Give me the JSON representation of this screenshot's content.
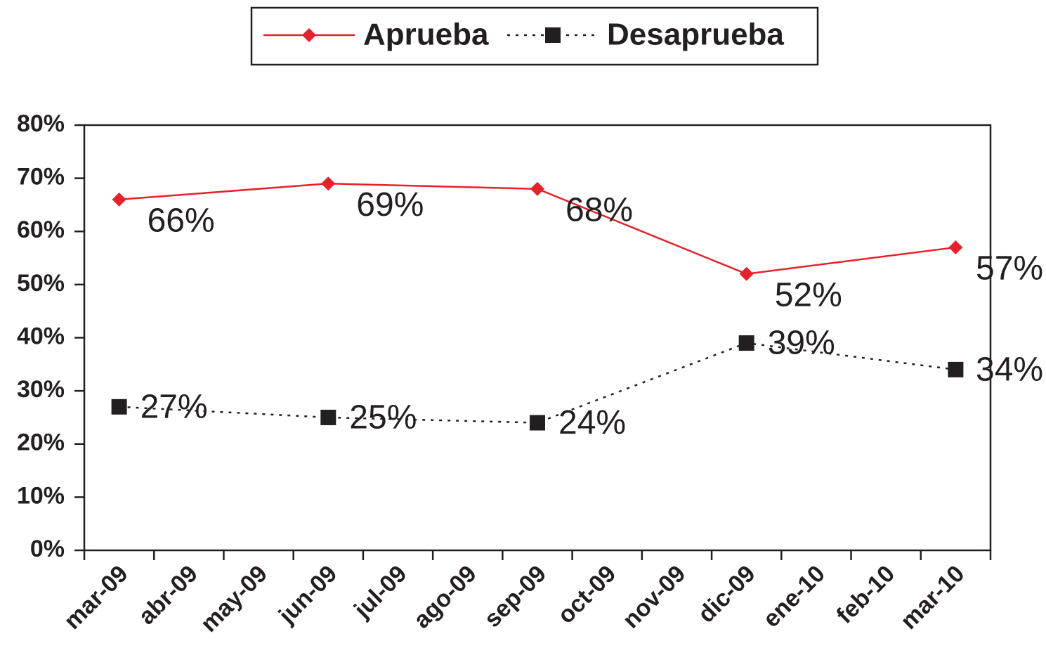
{
  "chart_data": {
    "type": "line",
    "categories": [
      "mar-09",
      "abr-09",
      "may-09",
      "jun-09",
      "jul-09",
      "ago-09",
      "sep-09",
      "oct-09",
      "nov-09",
      "dic-09",
      "ene-10",
      "feb-10",
      "mar-10"
    ],
    "series": [
      {
        "name": "Aprueba",
        "color": "#e8202a",
        "style": "solid",
        "marker": "diamond",
        "values": [
          66,
          null,
          null,
          69,
          null,
          null,
          68,
          null,
          null,
          52,
          null,
          null,
          57
        ],
        "value_labels": [
          "66%",
          null,
          null,
          "69%",
          null,
          null,
          "68%",
          null,
          null,
          "52%",
          null,
          null,
          "57%"
        ]
      },
      {
        "name": "Desaprueba",
        "color": "#231f20",
        "style": "dotted",
        "marker": "square",
        "values": [
          27,
          null,
          null,
          25,
          null,
          null,
          24,
          null,
          null,
          39,
          null,
          null,
          34
        ],
        "value_labels": [
          "27%",
          null,
          null,
          "25%",
          null,
          null,
          "24%",
          null,
          null,
          "39%",
          null,
          null,
          "34%"
        ]
      }
    ],
    "ylim": [
      0,
      80
    ],
    "yticks": [
      {
        "value": 0,
        "label": "0%"
      },
      {
        "value": 10,
        "label": "10%"
      },
      {
        "value": 20,
        "label": "20%"
      },
      {
        "value": 30,
        "label": "30%"
      },
      {
        "value": 40,
        "label": "40%"
      },
      {
        "value": 50,
        "label": "50%"
      },
      {
        "value": 60,
        "label": "60%"
      },
      {
        "value": 70,
        "label": "70%"
      },
      {
        "value": 80,
        "label": "80%"
      }
    ],
    "span_gaps": true,
    "legend": "top",
    "grid": false
  }
}
